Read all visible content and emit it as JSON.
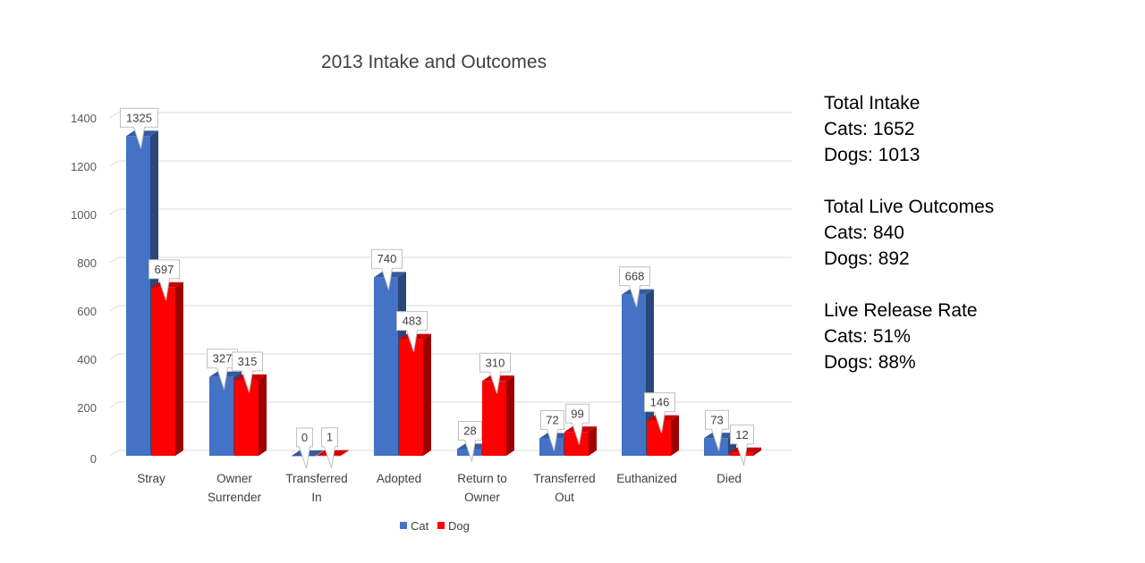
{
  "chart_data": {
    "type": "bar",
    "title": "2013 Intake and Outcomes",
    "categories": [
      [
        "Stray"
      ],
      [
        "Owner",
        "Surrender"
      ],
      [
        "Transferred",
        "In"
      ],
      [
        "Adopted"
      ],
      [
        "Return to",
        "Owner"
      ],
      [
        "Transferred",
        "Out"
      ],
      [
        "Euthanized"
      ],
      [
        "Died"
      ]
    ],
    "series": [
      {
        "name": "Cat",
        "color": "#4472c4",
        "values": [
          1325,
          327,
          0,
          740,
          28,
          72,
          668,
          73
        ]
      },
      {
        "name": "Dog",
        "color": "#ff0000",
        "values": [
          697,
          315,
          1,
          483,
          310,
          99,
          146,
          12
        ]
      }
    ],
    "yticks": [
      0,
      200,
      400,
      600,
      800,
      1000,
      1200,
      1400
    ],
    "ylim": [
      0,
      1400
    ],
    "grid": true,
    "legend_position": "bottom",
    "three_d": true
  },
  "stats": {
    "intake_heading": "Total Intake",
    "intake_cats": "Cats: 1652",
    "intake_dogs": "Dogs: 1013",
    "live_heading": "Total Live Outcomes",
    "live_cats": "Cats: 840",
    "live_dogs": "Dogs: 892",
    "rate_heading": "Live Release Rate",
    "rate_cats": "Cats: 51%",
    "rate_dogs": "Dogs: 88%"
  }
}
